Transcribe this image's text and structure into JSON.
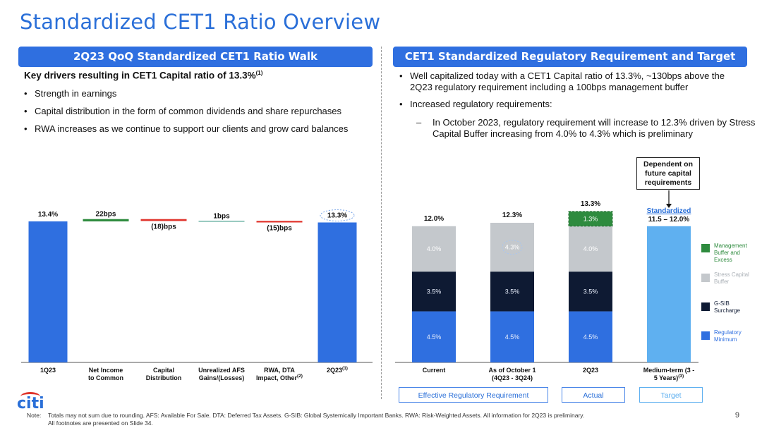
{
  "title": "Standardized CET1 Ratio Overview",
  "left_panel": {
    "header": "2Q23 QoQ Standardized CET1 Ratio Walk",
    "drivers_title": "Key drivers resulting in CET1 Capital ratio of 13.3%",
    "drivers_title_sup": "(1)",
    "bullets": [
      "Strength in earnings",
      "Capital distribution in the form of common dividends and share repurchases",
      "RWA increases as we continue to support our clients and grow card balances"
    ]
  },
  "right_panel": {
    "header": "CET1 Standardized Regulatory Requirement and Target",
    "bullets": [
      "Well capitalized today with a CET1 Capital ratio of 13.3%, ~130bps above the 2Q23 regulatory requirement including a 100bps management buffer",
      "Increased regulatory requirements:"
    ],
    "sub_bullet": "In October 2023, regulatory requirement will increase to 12.3% driven by Stress Capital Buffer increasing from 4.0% to 4.3% which is preliminary",
    "dependent_note": "Dependent on future capital requirements",
    "footer_labels": {
      "effective": "Effective Regulatory Requirement",
      "actual": "Actual",
      "target": "Target"
    }
  },
  "colors": {
    "blue": "#2f6fe0",
    "navy": "#0e1a33",
    "gray": "#c4c8cc",
    "green": "#2e8b3e",
    "light_blue": "#5fb0f0",
    "red": "#e0342c"
  },
  "chart_data": [
    {
      "type": "bar",
      "subtype": "waterfall",
      "categories": [
        "1Q23",
        "Net Income to Common",
        "Capital Distribution",
        "Unrealized AFS Gains/(Losses)",
        "RWA, DTA Impact, Other",
        "2Q23"
      ],
      "category_sups": [
        "",
        "",
        "",
        "",
        "(2)",
        "(1)"
      ],
      "values_bps": [
        1340,
        22,
        -18,
        1,
        -15,
        1330
      ],
      "labels": [
        "13.4%",
        "22bps",
        "(18)bps",
        "1bps",
        "(15)bps",
        "13.3%"
      ],
      "units": "CET1 ratio (bps)"
    },
    {
      "type": "bar",
      "subtype": "stacked",
      "categories": [
        "Current",
        "As of October 1 (4Q23 - 3Q24)",
        "2Q23",
        "Medium-term (3 - 5 Years)"
      ],
      "category_sups": [
        "",
        "",
        "",
        "(3)"
      ],
      "series": [
        {
          "name": "Regulatory Minimum",
          "values": [
            4.5,
            4.5,
            4.5,
            null
          ],
          "labels": [
            "4.5%",
            "4.5%",
            "4.5%",
            ""
          ]
        },
        {
          "name": "G-SIB Surcharge",
          "values": [
            3.5,
            3.5,
            3.5,
            null
          ],
          "labels": [
            "3.5%",
            "3.5%",
            "3.5%",
            ""
          ]
        },
        {
          "name": "Stress Capital Buffer",
          "values": [
            4.0,
            4.3,
            4.0,
            null
          ],
          "labels": [
            "4.0%",
            "4.3%",
            "4.0%",
            ""
          ]
        },
        {
          "name": "Management Buffer and Excess",
          "values": [
            null,
            null,
            1.3,
            null
          ],
          "labels": [
            "",
            "",
            "1.3%",
            ""
          ]
        }
      ],
      "totals": [
        "12.0%",
        "12.3%",
        "13.3%",
        "Standardized 11.5 – 12.0%"
      ],
      "target_range": [
        11.5,
        12.0
      ],
      "legend": [
        "Management Buffer and Excess",
        "Stress Capital Buffer",
        "G-SIB Surcharge",
        "Regulatory Minimum"
      ]
    }
  ],
  "footer": {
    "note_label": "Note:",
    "note_text": "Totals may not sum due to rounding. AFS: Available For Sale. DTA: Deferred Tax Assets. G-SIB: Global Systemically Important Banks. RWA: Risk-Weighted Assets. All information for 2Q23 is preliminary.",
    "note_text2": "All footnotes are presented on Slide 34.",
    "page": "9",
    "logo": "citi"
  }
}
